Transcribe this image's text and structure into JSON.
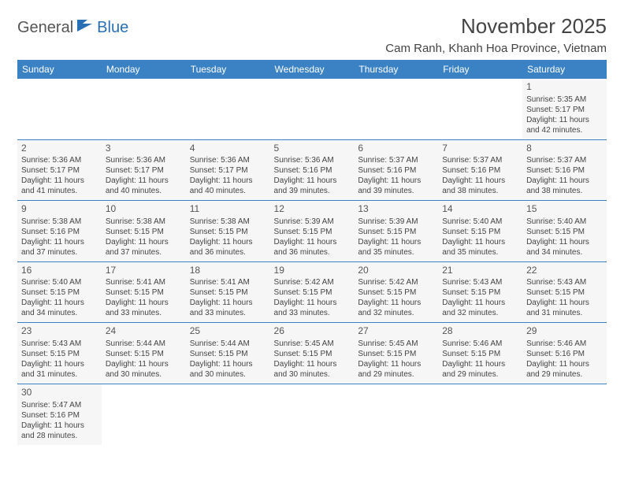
{
  "logo": {
    "part1": "General",
    "part2": "Blue"
  },
  "title": "November 2025",
  "location": "Cam Ranh, Khanh Hoa Province, Vietnam",
  "colors": {
    "header_bg": "#3b82c4",
    "header_text": "#ffffff",
    "cell_bg": "#f6f6f6",
    "border": "#3b82c4",
    "text": "#444444",
    "logo_gray": "#555555",
    "logo_blue": "#2a6fb5"
  },
  "dayHeaders": [
    "Sunday",
    "Monday",
    "Tuesday",
    "Wednesday",
    "Thursday",
    "Friday",
    "Saturday"
  ],
  "grid": [
    [
      null,
      null,
      null,
      null,
      null,
      null,
      {
        "n": "1",
        "sr": "5:35 AM",
        "ss": "5:17 PM",
        "dl": "11 hours and 42 minutes."
      }
    ],
    [
      {
        "n": "2",
        "sr": "5:36 AM",
        "ss": "5:17 PM",
        "dl": "11 hours and 41 minutes."
      },
      {
        "n": "3",
        "sr": "5:36 AM",
        "ss": "5:17 PM",
        "dl": "11 hours and 40 minutes."
      },
      {
        "n": "4",
        "sr": "5:36 AM",
        "ss": "5:17 PM",
        "dl": "11 hours and 40 minutes."
      },
      {
        "n": "5",
        "sr": "5:36 AM",
        "ss": "5:16 PM",
        "dl": "11 hours and 39 minutes."
      },
      {
        "n": "6",
        "sr": "5:37 AM",
        "ss": "5:16 PM",
        "dl": "11 hours and 39 minutes."
      },
      {
        "n": "7",
        "sr": "5:37 AM",
        "ss": "5:16 PM",
        "dl": "11 hours and 38 minutes."
      },
      {
        "n": "8",
        "sr": "5:37 AM",
        "ss": "5:16 PM",
        "dl": "11 hours and 38 minutes."
      }
    ],
    [
      {
        "n": "9",
        "sr": "5:38 AM",
        "ss": "5:16 PM",
        "dl": "11 hours and 37 minutes."
      },
      {
        "n": "10",
        "sr": "5:38 AM",
        "ss": "5:15 PM",
        "dl": "11 hours and 37 minutes."
      },
      {
        "n": "11",
        "sr": "5:38 AM",
        "ss": "5:15 PM",
        "dl": "11 hours and 36 minutes."
      },
      {
        "n": "12",
        "sr": "5:39 AM",
        "ss": "5:15 PM",
        "dl": "11 hours and 36 minutes."
      },
      {
        "n": "13",
        "sr": "5:39 AM",
        "ss": "5:15 PM",
        "dl": "11 hours and 35 minutes."
      },
      {
        "n": "14",
        "sr": "5:40 AM",
        "ss": "5:15 PM",
        "dl": "11 hours and 35 minutes."
      },
      {
        "n": "15",
        "sr": "5:40 AM",
        "ss": "5:15 PM",
        "dl": "11 hours and 34 minutes."
      }
    ],
    [
      {
        "n": "16",
        "sr": "5:40 AM",
        "ss": "5:15 PM",
        "dl": "11 hours and 34 minutes."
      },
      {
        "n": "17",
        "sr": "5:41 AM",
        "ss": "5:15 PM",
        "dl": "11 hours and 33 minutes."
      },
      {
        "n": "18",
        "sr": "5:41 AM",
        "ss": "5:15 PM",
        "dl": "11 hours and 33 minutes."
      },
      {
        "n": "19",
        "sr": "5:42 AM",
        "ss": "5:15 PM",
        "dl": "11 hours and 33 minutes."
      },
      {
        "n": "20",
        "sr": "5:42 AM",
        "ss": "5:15 PM",
        "dl": "11 hours and 32 minutes."
      },
      {
        "n": "21",
        "sr": "5:43 AM",
        "ss": "5:15 PM",
        "dl": "11 hours and 32 minutes."
      },
      {
        "n": "22",
        "sr": "5:43 AM",
        "ss": "5:15 PM",
        "dl": "11 hours and 31 minutes."
      }
    ],
    [
      {
        "n": "23",
        "sr": "5:43 AM",
        "ss": "5:15 PM",
        "dl": "11 hours and 31 minutes."
      },
      {
        "n": "24",
        "sr": "5:44 AM",
        "ss": "5:15 PM",
        "dl": "11 hours and 30 minutes."
      },
      {
        "n": "25",
        "sr": "5:44 AM",
        "ss": "5:15 PM",
        "dl": "11 hours and 30 minutes."
      },
      {
        "n": "26",
        "sr": "5:45 AM",
        "ss": "5:15 PM",
        "dl": "11 hours and 30 minutes."
      },
      {
        "n": "27",
        "sr": "5:45 AM",
        "ss": "5:15 PM",
        "dl": "11 hours and 29 minutes."
      },
      {
        "n": "28",
        "sr": "5:46 AM",
        "ss": "5:15 PM",
        "dl": "11 hours and 29 minutes."
      },
      {
        "n": "29",
        "sr": "5:46 AM",
        "ss": "5:16 PM",
        "dl": "11 hours and 29 minutes."
      }
    ],
    [
      {
        "n": "30",
        "sr": "5:47 AM",
        "ss": "5:16 PM",
        "dl": "11 hours and 28 minutes."
      },
      null,
      null,
      null,
      null,
      null,
      null
    ]
  ],
  "labels": {
    "sunrise": "Sunrise:",
    "sunset": "Sunset:",
    "daylight": "Daylight:"
  }
}
